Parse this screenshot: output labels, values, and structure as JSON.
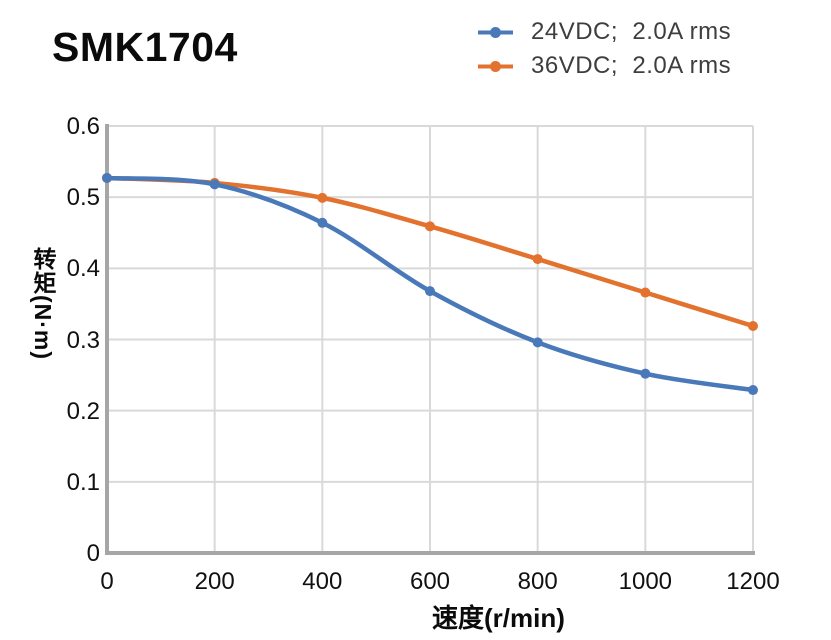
{
  "title": "SMK1704",
  "legend": {
    "position": "top-right",
    "items": [
      {
        "label": "24VDC;  2.0A rms",
        "color": "#4979B9",
        "marker": "line-dot"
      },
      {
        "label": "36VDC;  2.0A rms",
        "color": "#E2722D",
        "marker": "line-dot"
      }
    ]
  },
  "chart_data": {
    "type": "line",
    "title": "SMK1704",
    "xlabel": "速度(r/min)",
    "ylabel": "转矩(N·m)",
    "x": [
      0,
      200,
      400,
      600,
      800,
      1000,
      1200
    ],
    "series": [
      {
        "name": "24VDC;  2.0A rms",
        "color": "#4979B9",
        "marker": "circle",
        "values": [
          0.527,
          0.518,
          0.464,
          0.368,
          0.296,
          0.252,
          0.229
        ]
      },
      {
        "name": "36VDC;  2.0A rms",
        "color": "#E2722D",
        "marker": "circle",
        "values": [
          0.527,
          0.52,
          0.499,
          0.459,
          0.413,
          0.366,
          0.319
        ]
      }
    ],
    "x_ticks": [
      0,
      200,
      400,
      600,
      800,
      1000,
      1200
    ],
    "y_ticks": [
      0,
      0.1,
      0.2,
      0.3,
      0.4,
      0.5,
      0.6
    ],
    "xlim": [
      0,
      1200
    ],
    "ylim": [
      0,
      0.6
    ],
    "grid": true,
    "smooth_lines": true,
    "legend_position": "top-right",
    "axis_color": "#A6A6A6",
    "grid_color": "#D9D9D9"
  }
}
